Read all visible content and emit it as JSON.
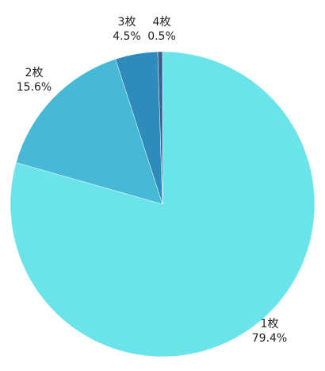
{
  "chart_data": {
    "type": "pie",
    "slices": [
      {
        "label": "1枚",
        "pct_label": "79.4%",
        "value": 79.4,
        "color": "#6ae4ea"
      },
      {
        "label": "2枚",
        "pct_label": "15.6%",
        "value": 15.6,
        "color": "#45b9d6"
      },
      {
        "label": "3枚",
        "pct_label": "4.5%",
        "value": 4.5,
        "color": "#2e8bbb"
      },
      {
        "label": "4枚",
        "pct_label": "0.5%",
        "value": 0.5,
        "color": "#3a5f8f"
      }
    ]
  }
}
